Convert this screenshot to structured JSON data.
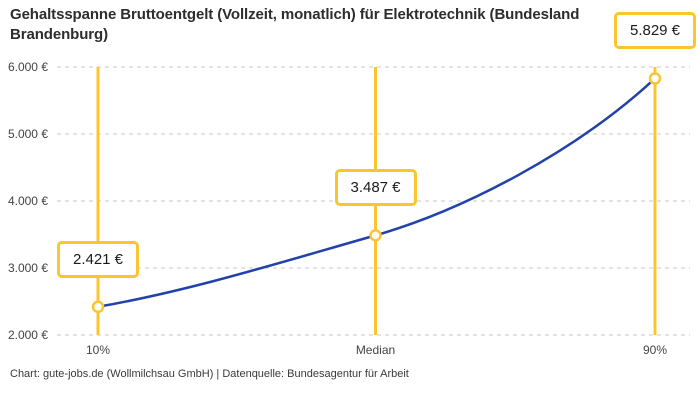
{
  "chart": {
    "title": "Gehaltsspanne Bruttoentgelt (Vollzeit, monatlich) für Elektrotechnik (Bundesland Brandenburg)",
    "footer": "Chart: gute-jobs.de (Wollmilchsau GmbH) | Datenquelle: Bundesagentur für Arbeit"
  },
  "chart_data": {
    "type": "line",
    "title": "Gehaltsspanne Bruttoentgelt (Vollzeit, monatlich) für Elektrotechnik (Bundesland Brandenburg)",
    "categories": [
      "10%",
      "Median",
      "90%"
    ],
    "values": [
      2421,
      3487,
      5829
    ],
    "value_labels": [
      "2.421 €",
      "3.487 €",
      "5.829 €"
    ],
    "xlabel": "",
    "ylabel": "",
    "ylim": [
      2000,
      6000
    ],
    "yticks": [
      2000,
      3000,
      4000,
      5000,
      6000
    ],
    "ytick_labels": [
      "2.000 €",
      "3.000 €",
      "4.000 €",
      "5.000 €",
      "6.000 €"
    ],
    "grid": "horizontal dashed",
    "legend_position": "none",
    "colors": {
      "line": "#2142ab",
      "accent": "#fcc42d",
      "marker_fill": "#ffffff",
      "grid": "#c9c9c9",
      "axis_text": "#444444",
      "title_text": "#2d2d2d",
      "footer_text": "#3a3a3a",
      "label_text": "#1a1a1a"
    }
  }
}
